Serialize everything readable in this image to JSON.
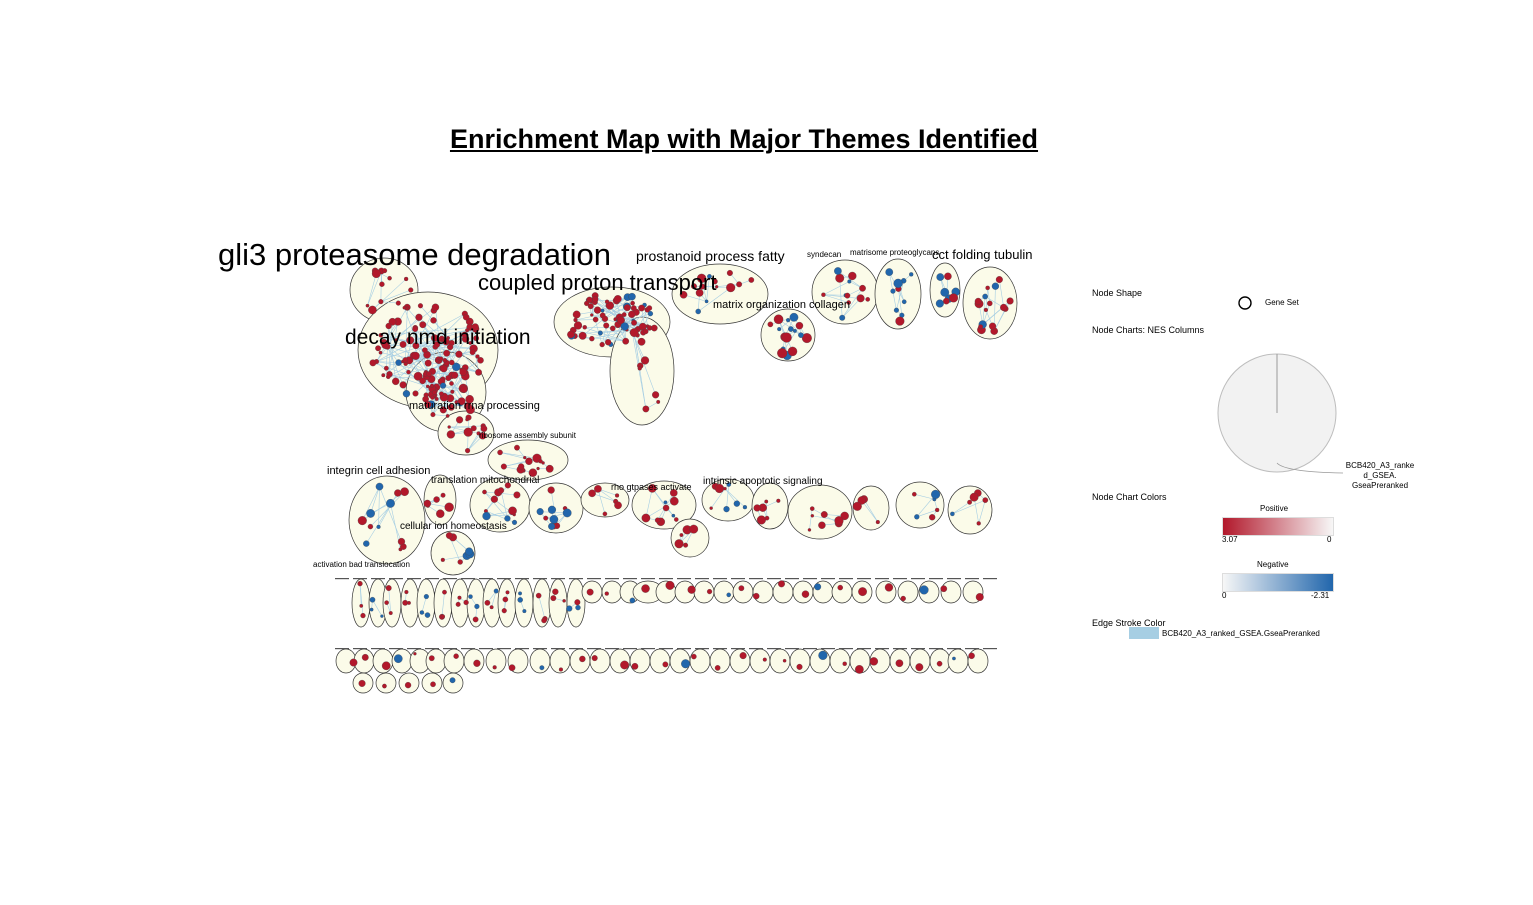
{
  "title": "Enrichment Map with Major Themes Identified",
  "colors": {
    "positive": "#b2182b",
    "negative": "#2166ac",
    "cluster_fill": "#fbfbe9",
    "edge": "#a6cee3"
  },
  "network": {
    "cluster_labels": [
      "gli3 proteasome degradation",
      "coupled proton transport",
      "decay nmd initiation",
      "prostanoid process fatty",
      "matrix organization collagen",
      "cct folding tubulin",
      "maturation rrna processing",
      "ribosome assembly subunit",
      "integrin cell adhesion",
      "cellular ion homeostasis",
      "translation mitochondrial",
      "rho gtpases activate",
      "intrinsic apoptotic signaling",
      "activation bad translocation",
      "syndecan",
      "matrisome proteoglycans"
    ]
  },
  "legend": {
    "node_shape_label": "Node Shape",
    "gene_set_label": "Gene Set",
    "node_charts_label": "Node Charts: NES Columns",
    "pie_label_lines": [
      "BCB420_A3_ranke",
      "d_GSEA.",
      "GseaPreranked"
    ],
    "node_chart_colors_label": "Node Chart Colors",
    "positive_label": "Positive",
    "positive_max": "3.07",
    "positive_min": "0",
    "negative_label": "Negative",
    "negative_min": "0",
    "negative_max": "-2.31",
    "edge_stroke_label": "Edge Stroke Color",
    "edge_stroke_entry": "BCB420_A3_ranked_GSEA.GseaPreranked"
  }
}
